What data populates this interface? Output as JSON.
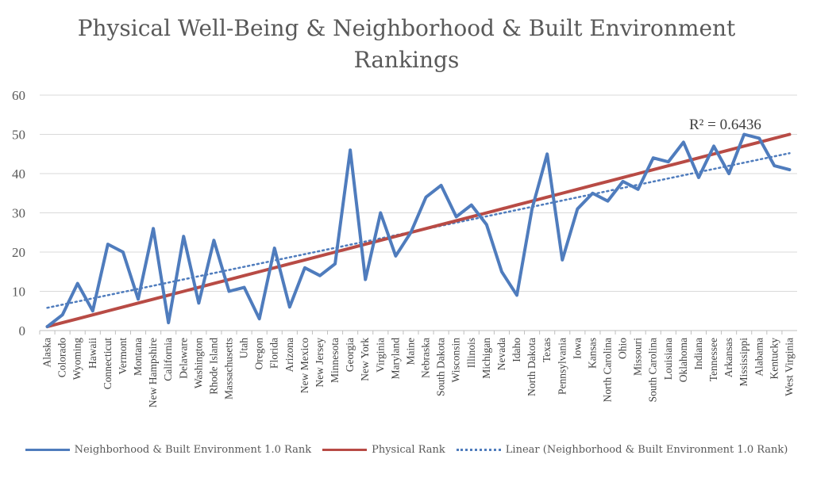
{
  "chart_data": {
    "type": "line",
    "title": "Physical Well-Being & Neighborhood & Built Environment Rankings",
    "title_lines": [
      "Physical Well-Being & Neighborhood & Built Environment",
      "Rankings"
    ],
    "categories": [
      "Alaska",
      "Colorado",
      "Wyoming",
      "Hawaii",
      "Connecticut",
      "Vermont",
      "Montana",
      "New Hampshire",
      "California",
      "Delaware",
      "Washington",
      "Rhode Island",
      "Massachusetts",
      "Utah",
      "Oregon",
      "Florida",
      "Arizona",
      "New Mexico",
      "New Jersey",
      "Minnesota",
      "Georgia",
      "New York",
      "Virginia",
      "Maryland",
      "Maine",
      "Nebraska",
      "South Dakota",
      "Wisconsin",
      "Illinois",
      "Michigan",
      "Nevada",
      "Idaho",
      "North Dakota",
      "Texas",
      "Pennsylvania",
      "Iowa",
      "Kansas",
      "North Carolina",
      "Ohio",
      "Missouri",
      "South Carolina",
      "Louisiana",
      "Oklahoma",
      "Indiana",
      "Tennessee",
      "Arkansas",
      "Mississippi",
      "Alabama",
      "Kentucky",
      "West Virginia"
    ],
    "series": [
      {
        "name": "Neighborhood & Built Environment 1.0 Rank",
        "color": "#4F7CBD",
        "style": "solid",
        "values": [
          1,
          4,
          12,
          5,
          22,
          20,
          8,
          26,
          2,
          24,
          7,
          23,
          10,
          11,
          3,
          21,
          6,
          16,
          14,
          17,
          46,
          13,
          30,
          19,
          25,
          34,
          37,
          29,
          32,
          27,
          15,
          9,
          31,
          45,
          18,
          31,
          35,
          33,
          38,
          36,
          44,
          43,
          48,
          39,
          47,
          40,
          50,
          49,
          42,
          41
        ]
      },
      {
        "name": "Physical Rank",
        "color": "#B84B45",
        "style": "solid",
        "values": [
          1,
          2,
          3,
          4,
          5,
          6,
          7,
          8,
          9,
          10,
          11,
          12,
          13,
          14,
          15,
          16,
          17,
          18,
          19,
          20,
          21,
          22,
          23,
          24,
          25,
          26,
          27,
          28,
          29,
          30,
          31,
          32,
          33,
          34,
          35,
          36,
          37,
          38,
          39,
          40,
          41,
          42,
          43,
          44,
          45,
          46,
          47,
          48,
          49,
          50
        ]
      },
      {
        "name": "Linear (Neighborhood & Built Environment 1.0 Rank)",
        "color": "#4F7CBD",
        "style": "dotted",
        "trend_of": "Neighborhood & Built Environment 1.0 Rank",
        "start": 5.8,
        "end": 45.2
      }
    ],
    "r_squared_label": "R² = 0.6436",
    "ylim": [
      0,
      60
    ],
    "yticks": [
      0,
      10,
      20,
      30,
      40,
      50,
      60
    ],
    "xlabel": "",
    "ylabel": "",
    "grid": true,
    "legend": "bottom"
  }
}
